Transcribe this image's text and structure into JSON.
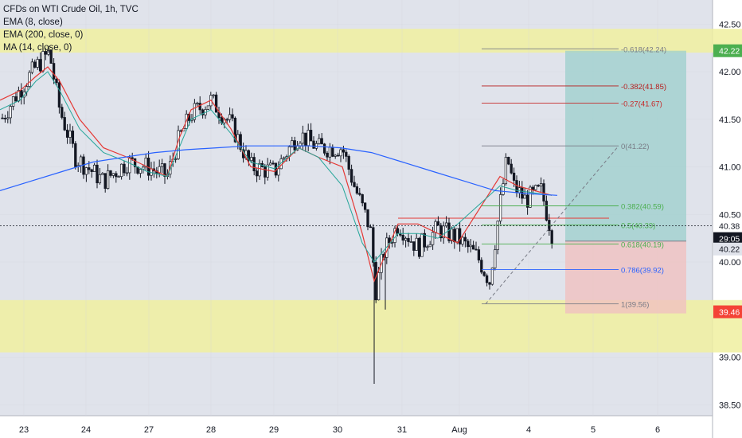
{
  "header": {
    "title": "CFDs on WTI Crude Oil, 1h, TVC",
    "indicators": [
      "EMA (8, close)",
      "EMA (200, close, 0)",
      "MA (14, close, 0)"
    ]
  },
  "colors": {
    "background": "#e0e3eb",
    "grid": "#d1d4dc",
    "up": "#ffffff",
    "down": "#131722",
    "ema8": "#e53935",
    "ema200": "#2962ff",
    "ma14": "#26a69a",
    "zone": "#f0f0a0",
    "target": "#9ccfcc",
    "stop": "#f0c0c0",
    "price_label": "#131722",
    "target_label": "#4caf50",
    "stop_label": "#f44336"
  },
  "price_labels": {
    "current_price": "40.38",
    "countdown": "29:05",
    "last_close_label": "40.22",
    "target_price": "42.22",
    "stop_price": "39.46"
  },
  "chart_data": {
    "type": "candlestick",
    "title": "CFDs on WTI Crude Oil, 1h, TVC",
    "x_tick_labels": [
      "23",
      "24",
      "27",
      "28",
      "29",
      "30",
      "31",
      "Aug",
      "4",
      "5",
      "6"
    ],
    "y_tick_labels": [
      "42.50",
      "42.00",
      "41.50",
      "41.00",
      "40.50",
      "40.00",
      "39.00",
      "38.50"
    ],
    "ylim": [
      38.3,
      42.7
    ],
    "grid": true,
    "series": [
      {
        "name": "EMA (8, close)",
        "values": [
          41.7,
          41.8,
          41.95,
          42.05,
          41.9,
          41.5,
          41.2,
          41.1,
          41.0,
          40.9,
          41.3,
          41.6,
          41.7,
          41.4,
          41.0,
          40.95,
          41.2,
          41.1,
          41.0,
          40.3,
          39.8,
          40.4,
          40.4,
          40.3,
          40.2,
          40.9,
          40.8,
          40.7
        ]
      },
      {
        "name": "EMA (200, close, 0)",
        "values": [
          40.75,
          40.85,
          40.95,
          41.05,
          41.1,
          41.15,
          41.18,
          41.2,
          41.22,
          41.22,
          41.22,
          41.2,
          41.15,
          41.05,
          40.95,
          40.85,
          40.75,
          40.72,
          40.7
        ]
      },
      {
        "name": "MA (14, close, 0)",
        "values": [
          41.6,
          41.7,
          41.9,
          42.0,
          41.8,
          41.4,
          41.15,
          41.05,
          40.95,
          40.9,
          41.2,
          41.5,
          41.6,
          41.35,
          41.05,
          40.98,
          41.2,
          41.1,
          40.8,
          40.2,
          40.0,
          40.3,
          40.3,
          40.25,
          40.4,
          40.8,
          40.75,
          40.7
        ]
      }
    ],
    "fibonacci": {
      "levels": [
        {
          "label": "-0.618(42.24)",
          "value": 42.24
        },
        {
          "label": "-0.382(41.85)",
          "value": 41.85
        },
        {
          "label": "-0.27(41.67)",
          "value": 41.67
        },
        {
          "label": "0(41.22)",
          "value": 41.22
        },
        {
          "label": "0.382(40.59)",
          "value": 40.59
        },
        {
          "label": "0.5(40.39)",
          "value": 40.39
        },
        {
          "label": "0.618(40.19)",
          "value": 40.19
        },
        {
          "label": "0.786(39.92)",
          "value": 39.92
        },
        {
          "label": "1(39.56)",
          "value": 39.56
        }
      ]
    },
    "zones": [
      {
        "name": "resistance",
        "from": 42.2,
        "to": 42.45
      },
      {
        "name": "support",
        "from": 39.05,
        "to": 39.6
      }
    ],
    "position": {
      "entry": 40.22,
      "target": 42.22,
      "stop": 39.46
    },
    "horizontal_lines": [
      {
        "value": 40.46
      }
    ],
    "current_price": 40.38
  }
}
